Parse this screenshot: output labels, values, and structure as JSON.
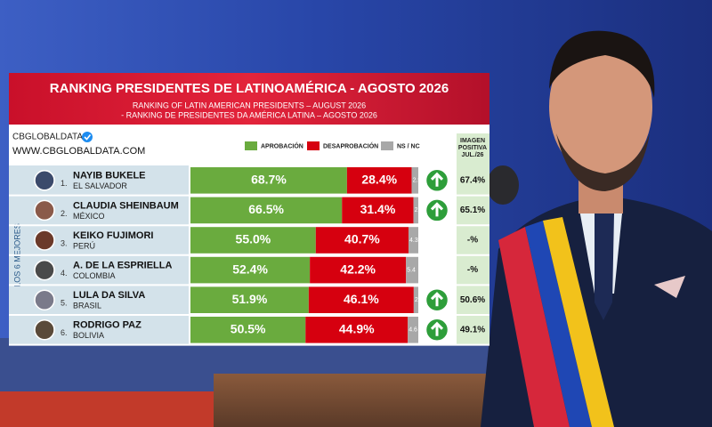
{
  "chart_data": {
    "type": "stacked_bar_horizontal",
    "title": "RANKING PRESIDENTES DE LATINOAMÉRICA - AGOSTO 2026",
    "subtitle": [
      "RANKING OF LATIN AMERICAN PRESIDENTS – AUGUST 2026",
      "- RANKING DE PRESIDENTES DA AMÉRICA LATINA – AGOSTO 2026"
    ],
    "source": "CBGLOBALDATA",
    "source_url": "WWW.CBGLOBALDATA.COM",
    "group_label": "LOS 6 MEJORES",
    "ranks": [
      "1.",
      "2.",
      "3.",
      "4.",
      "5.",
      "6."
    ],
    "categories": [
      "NAYIB BUKELE",
      "CLAUDIA SHEINBAUM",
      "KEIKO FUJIMORI",
      "A. DE LA ESPRIELLA",
      "LULA DA SILVA",
      "RODRIGO PAZ"
    ],
    "countries": [
      "EL SALVADOR",
      "MÉXICO",
      "PERÚ",
      "COLOMBIA",
      "BRASIL",
      "BOLIVIA"
    ],
    "xlim": [
      0,
      100
    ],
    "series": [
      {
        "name": "APROBACIÓN",
        "color": "#6aab3e",
        "values": [
          68.7,
          66.5,
          55.0,
          52.4,
          51.9,
          50.5
        ],
        "value_labels": [
          "68.7%",
          "66.5%",
          "55.0%",
          "52.4%",
          "51.9%",
          "50.5%"
        ]
      },
      {
        "name": "DESAPROBACIÓN",
        "color": "#d6000f",
        "values": [
          28.4,
          31.4,
          40.7,
          42.2,
          46.1,
          44.9
        ],
        "value_labels": [
          "28.4%",
          "31.4%",
          "40.7%",
          "42.2%",
          "46.1%",
          "44.9%"
        ]
      },
      {
        "name": "NS / NC",
        "color": "#a8a8a8",
        "values": [
          2.9,
          2.1,
          4.3,
          5.4,
          2.0,
          4.6
        ],
        "value_labels": [
          "2.9",
          "2.1",
          "4.3",
          "5.4",
          "2.0",
          "4.6"
        ]
      }
    ],
    "trend": [
      "up",
      "up",
      null,
      null,
      "up",
      "up"
    ],
    "trend_color": "#2e9e3a",
    "positive_image": {
      "title": [
        "IMAGEN",
        "POSITIVA",
        "JUL./26"
      ],
      "values": [
        67.4,
        65.1,
        null,
        null,
        50.6,
        49.1
      ],
      "value_labels": [
        "67.4%",
        "65.1%",
        "-%",
        "-%",
        "50.6%",
        "49.1%"
      ]
    }
  }
}
